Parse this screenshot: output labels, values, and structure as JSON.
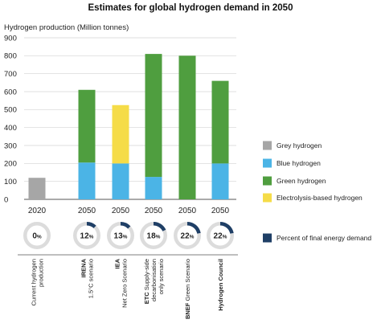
{
  "chart_data": {
    "type": "bar",
    "stacked": true,
    "title": "Estimates for global hydrogen demand in 2050",
    "ylabel": "Hydrogen production (Million tonnes)",
    "ylim": [
      0,
      900
    ],
    "yticks": [
      "0",
      "100",
      "200",
      "300",
      "400",
      "500",
      "600",
      "700",
      "800",
      "900"
    ],
    "grid": true,
    "legend_position": "right",
    "categories": [
      {
        "year": "2020",
        "source_line1": "Current hydrogen",
        "source_line2": "production",
        "bold_part": ""
      },
      {
        "year": "2050",
        "source_line1": "IRENA",
        "source_line2": "1.5°C scenario",
        "bold_part": "first"
      },
      {
        "year": "2050",
        "source_line1": "IEA",
        "source_line2": "Net Zero Scenario",
        "bold_part": "first"
      },
      {
        "year": "2050",
        "source_line1": "ETC Supply-side",
        "source_line2": "decarbonisation",
        "source_line3": "only scenario",
        "bold_part": "word"
      },
      {
        "year": "2050",
        "source_line1": "BNEF Green Scenario",
        "source_line2": "",
        "bold_part": "word"
      },
      {
        "year": "2050",
        "source_line1": "Hydrogen Council",
        "source_line2": "",
        "bold_part": "first"
      }
    ],
    "series": [
      {
        "name": "Grey hydrogen",
        "color": "#a6a6a6",
        "values": [
          120,
          0,
          0,
          0,
          0,
          0
        ]
      },
      {
        "name": "Blue hydrogen",
        "color": "#4bb4e6",
        "values": [
          0,
          205,
          200,
          125,
          0,
          200
        ]
      },
      {
        "name": "Green hydrogen",
        "color": "#4f9e3f",
        "values": [
          0,
          405,
          0,
          685,
          800,
          460
        ]
      },
      {
        "name": "Electrolysis-based hydrogen",
        "color": "#f5dc48",
        "values": [
          0,
          0,
          325,
          0,
          0,
          0
        ]
      }
    ],
    "percent_final_energy_demand": {
      "label": "Percent of final energy demand",
      "color": "#1f3f66",
      "values": [
        0,
        12,
        13,
        18,
        22,
        22
      ]
    }
  }
}
